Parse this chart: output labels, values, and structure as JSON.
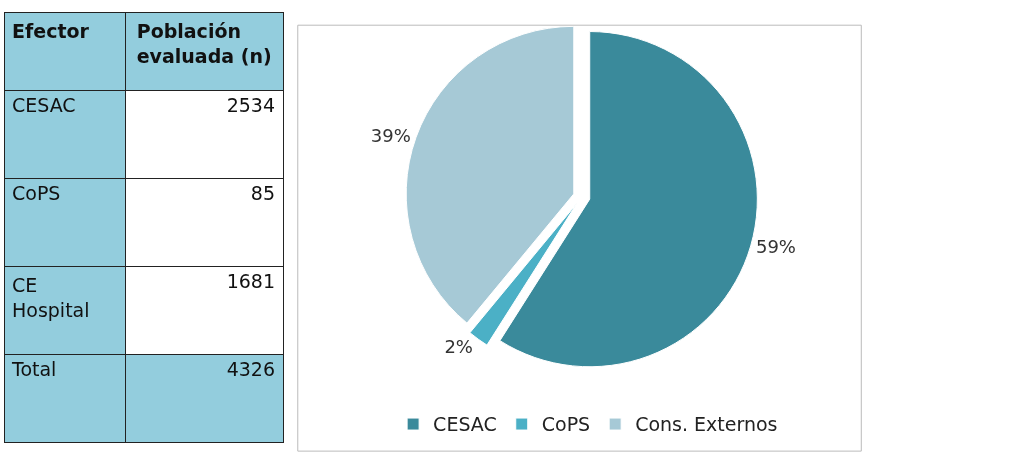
{
  "chart_data": [
    {
      "type": "other",
      "xlabel": "Efector",
      "ylabel": "Población evaluada (n)",
      "categories": [
        "CESAC",
        "CoPS",
        "CE Hospital",
        "Total"
      ],
      "values": [
        2534,
        85,
        1681,
        4326
      ],
      "data_labels": true
    },
    {
      "type": "pie",
      "categories": [
        "CESAC",
        "CoPS",
        "Cons. Externos"
      ],
      "values": [
        59,
        2,
        39
      ],
      "value_labels": [
        "59%",
        "2%",
        "39%"
      ],
      "colors": [
        "#3a8a9b",
        "#4bb0c6",
        "#a6c9d6"
      ],
      "legend": "bottom"
    }
  ]
}
